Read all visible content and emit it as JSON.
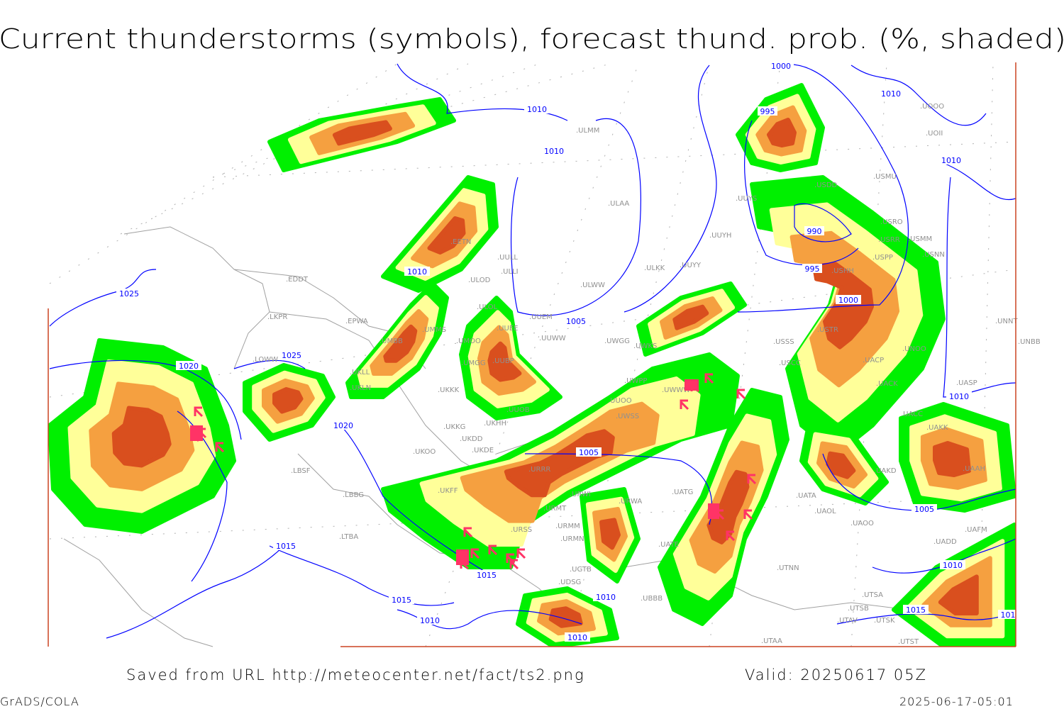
{
  "title": "Current thunderstorms (symbols), forecast thund. prob. (%, shaded)",
  "footer": {
    "saved_from": "Saved from URL http://meteocenter.net/fact/ts2.png",
    "valid": "Valid: 20250617 05Z",
    "software": "GrADS/COLA",
    "generated": "2025-06-17-05:01"
  },
  "colors": {
    "prob_low": "#00f000",
    "prob_mid": "#ffff99",
    "prob_high": "#f5a040",
    "prob_max": "#d94f1e",
    "thunderstorm_symbol": "#ff3366",
    "isobar": "#0000ff",
    "borders": "#a0a0a0",
    "frame": "#cc4422"
  },
  "thunderstorm_symbol_icon": "thunderstorm-flag-icon",
  "isobar_labels": [
    "1000",
    "1010",
    "1005",
    "1010",
    "995",
    "1010",
    "1010",
    "1025",
    "990",
    "995",
    "1000",
    "1010",
    "1025",
    "1020",
    "1020",
    "1010",
    "1005",
    "1005",
    "1015",
    "1015",
    "1015",
    "1010",
    "1010",
    "1010",
    "1010",
    "1015",
    "101"
  ],
  "stations": [
    "EDDT",
    "EPWA",
    "LKPR",
    "LOWW",
    "LBSF",
    "LBBG",
    "LTBA",
    "UMMS",
    "UMBB",
    "UMOO",
    "UMGG",
    "UKLL",
    "UKLN",
    "UKKK",
    "UKKG",
    "UKDD",
    "UKHH",
    "UKDE",
    "UKOO",
    "UKFF",
    "URRR",
    "URMT",
    "URSS",
    "URMM",
    "URMN",
    "URWI",
    "URWA",
    "UBBB",
    "UGTB",
    "UDSG",
    "UUOB",
    "UUOO",
    "UUBP",
    "UUEE",
    "UUWW",
    "UWGG",
    "UWKS",
    "UWPP",
    "UWSS",
    "UWWW",
    "UATG",
    "UATE",
    "UULL",
    "ULOL",
    "ULOD",
    "EETN",
    "ULLI",
    "ULAA",
    "ULWW",
    "UUEM",
    "ULKK",
    "UUYY",
    "UUYH",
    "UUYS",
    "ULMM",
    "USSS",
    "USTR",
    "USCC",
    "UNOO",
    "UACP",
    "UACK",
    "UASP",
    "UNNT",
    "UNBB",
    "UACC",
    "UAKK",
    "UAAH",
    "UAKD",
    "UAOL",
    "UAOO",
    "UATA",
    "UTNN",
    "UTSA",
    "UTSB",
    "UTAV",
    "UTSK",
    "UTAA",
    "UTST",
    "UAFM",
    "UADD",
    "USHH",
    "USRR",
    "USPP",
    "USNN",
    "USRO",
    "USMU",
    "UOOO",
    "UOII",
    "USDD",
    "USMM"
  ]
}
